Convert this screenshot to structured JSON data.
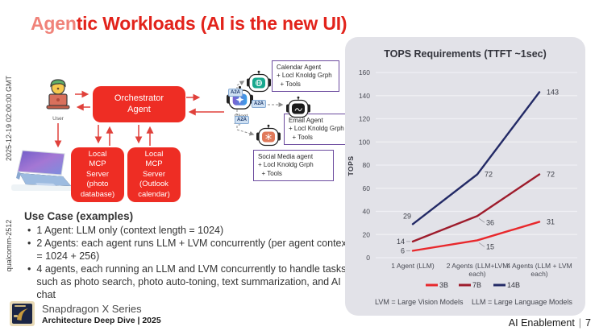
{
  "slide": {
    "title_a": "Agen",
    "title_b": "tic Workloads (AI is the new UI)",
    "watermark_top": "2025-12-19 02:00:00 GMT",
    "watermark_bottom": "qualcomm-2512",
    "footer": {
      "product": "Snapdragon X Series",
      "subtitle": "Architecture Deep Dive | 2025"
    },
    "page_label": "AI Enablement",
    "page_separator": "|",
    "page_number": "7"
  },
  "diagram": {
    "user_label": "User",
    "orchestrator": "Orchestrator\nAgent",
    "mcp_photo": "Local\nMCP\nServer\n(photo\ndatabase)",
    "mcp_outlook": "Local\nMCP\nServer\n(Outlook\ncalendar)",
    "client_agent_label": "Client\nAgent",
    "a2a_label": "A2A",
    "agent_boxes": [
      {
        "name": "calendar-agent",
        "text": "Calendar Agent\n+ Locl Knoldg Grph\n  + Tools",
        "color": "#18a88e"
      },
      {
        "name": "email-agent",
        "text": "Email Agent\n+ Locl Knoldg Grph\n  + Tools",
        "color": "#1b1b1b"
      },
      {
        "name": "social-media-agent",
        "text": "Social Media agent\n+ Locl Knoldg Grph\n  + Tools",
        "color": "#e0795a"
      }
    ]
  },
  "use_case": {
    "heading": "Use Case (examples)",
    "bullet_glyph": "•",
    "bullets": [
      "1 Agent: LLM only (context length = 1024)",
      "2 Agents: each agent runs LLM + LVM concurrently (per agent context = 1024 + 256)",
      "4 agents, each running an LLM and LVM concurrently to handle tasks such as photo search, photo auto-toning, text summarization, and AI chat"
    ]
  },
  "chart_data": {
    "type": "line",
    "title": "TOPS Requirements (TTFT ~1sec)",
    "xlabel": "",
    "ylabel": "TOPS",
    "ylim": [
      0,
      160
    ],
    "yticks": [
      0,
      20,
      40,
      60,
      80,
      100,
      120,
      140,
      160
    ],
    "grid": true,
    "legend_position": "bottom",
    "categories": [
      "1 Agent (LLM)",
      "2 Agents (LLM+LVM\neach)",
      "4 Agents (LLM + LVM\neach)"
    ],
    "series": [
      {
        "name": "3B",
        "color": "#e8282c",
        "values": [
          6,
          15,
          31
        ]
      },
      {
        "name": "7B",
        "color": "#9e1c2c",
        "values": [
          14,
          36,
          72
        ]
      },
      {
        "name": "14B",
        "color": "#232a66",
        "values": [
          29,
          72,
          143
        ]
      }
    ],
    "footnotes": [
      "LVM = Large Vision Models",
      "LLM = Large Language Models"
    ],
    "panel_color": "#e2e2e8"
  }
}
